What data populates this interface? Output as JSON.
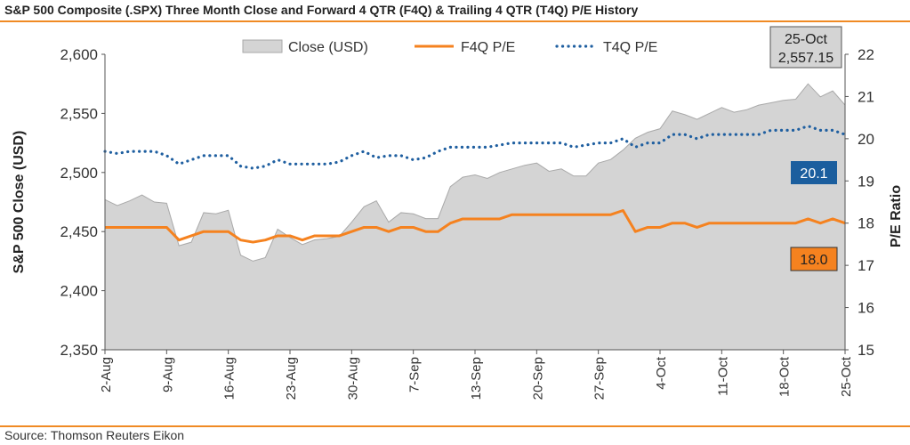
{
  "title": "S&P 500 Composite (.SPX) Three Month Close and Forward 4 QTR (F4Q) & Trailing 4 QTR (T4Q) P/E History",
  "source": "Source: Thomson Reuters Eikon",
  "colors": {
    "accent": "#f08a24",
    "close_fill": "#d4d4d4",
    "f4q": "#f5821f",
    "t4q": "#1f5fa0",
    "t4q_badge": "#1b5e9e",
    "f4q_badge": "#f5821f"
  },
  "chart_data": {
    "type": "line",
    "title": "S&P 500 Composite (.SPX) Three Month Close and Forward 4 QTR (F4Q) & Trailing 4 QTR (T4Q) P/E History",
    "ylabel": "S&P 500 Close (USD)",
    "y2label": "P/E Ratio",
    "ylim": [
      2350,
      2600
    ],
    "y2lim": [
      15,
      22
    ],
    "yticks": [
      "2,350",
      "2,400",
      "2,450",
      "2,500",
      "2,550",
      "2,600"
    ],
    "y2ticks": [
      "15",
      "16",
      "17",
      "18",
      "19",
      "20",
      "21",
      "22"
    ],
    "xticks": [
      "2-Aug",
      "9-Aug",
      "16-Aug",
      "23-Aug",
      "30-Aug",
      "7-Sep",
      "13-Sep",
      "20-Sep",
      "27-Sep",
      "4-Oct",
      "11-Oct",
      "18-Oct",
      "25-Oct"
    ],
    "legend": [
      "Close (USD)",
      "F4Q P/E",
      "T4Q P/E"
    ],
    "legend_position": "top",
    "grid": false,
    "series": [
      {
        "name": "Close (USD)",
        "kind": "area",
        "values": [
          2477,
          2472,
          2476,
          2481,
          2475,
          2474,
          2438,
          2441,
          2466,
          2465,
          2468,
          2430,
          2425,
          2428,
          2452,
          2445,
          2439,
          2443,
          2444,
          2446,
          2458,
          2471,
          2476,
          2458,
          2466,
          2465,
          2461,
          2461,
          2488,
          2496,
          2498,
          2495,
          2500,
          2503,
          2506,
          2508,
          2501,
          2503,
          2497,
          2497,
          2508,
          2511,
          2519,
          2529,
          2534,
          2537,
          2552,
          2549,
          2545,
          2550,
          2555,
          2551,
          2553,
          2557,
          2559,
          2561,
          2562,
          2575,
          2564,
          2569,
          2557
        ]
      },
      {
        "name": "F4Q P/E",
        "kind": "line",
        "axis": "right",
        "values": [
          17.9,
          17.9,
          17.9,
          17.9,
          17.9,
          17.9,
          17.6,
          17.7,
          17.8,
          17.8,
          17.8,
          17.6,
          17.55,
          17.6,
          17.7,
          17.7,
          17.6,
          17.7,
          17.7,
          17.7,
          17.8,
          17.9,
          17.9,
          17.8,
          17.9,
          17.9,
          17.8,
          17.8,
          18.0,
          18.1,
          18.1,
          18.1,
          18.1,
          18.2,
          18.2,
          18.2,
          18.2,
          18.2,
          18.2,
          18.2,
          18.2,
          18.2,
          18.3,
          17.8,
          17.9,
          17.9,
          18.0,
          18.0,
          17.9,
          18.0,
          18.0,
          18.0,
          18.0,
          18.0,
          18.0,
          18.0,
          18.0,
          18.1,
          18.0,
          18.1,
          18.0
        ]
      },
      {
        "name": "T4Q P/E",
        "kind": "line",
        "axis": "right",
        "style": "dotted",
        "values": [
          19.7,
          19.65,
          19.7,
          19.7,
          19.7,
          19.6,
          19.4,
          19.5,
          19.6,
          19.6,
          19.6,
          19.35,
          19.3,
          19.35,
          19.5,
          19.4,
          19.4,
          19.4,
          19.4,
          19.45,
          19.6,
          19.7,
          19.55,
          19.6,
          19.6,
          19.5,
          19.55,
          19.7,
          19.8,
          19.8,
          19.8,
          19.8,
          19.85,
          19.9,
          19.9,
          19.9,
          19.9,
          19.9,
          19.8,
          19.85,
          19.9,
          19.9,
          20.0,
          19.8,
          19.9,
          19.9,
          20.1,
          20.1,
          20.0,
          20.1,
          20.1,
          20.1,
          20.1,
          20.1,
          20.2,
          20.2,
          20.2,
          20.3,
          20.2,
          20.2,
          20.1
        ]
      }
    ],
    "annotations": [
      {
        "text_date": "25-Oct",
        "text_value": "2,557.15",
        "target": "Close (USD)"
      },
      {
        "text": "20.1",
        "target": "T4Q P/E"
      },
      {
        "text": "18.0",
        "target": "F4Q P/E"
      }
    ]
  }
}
